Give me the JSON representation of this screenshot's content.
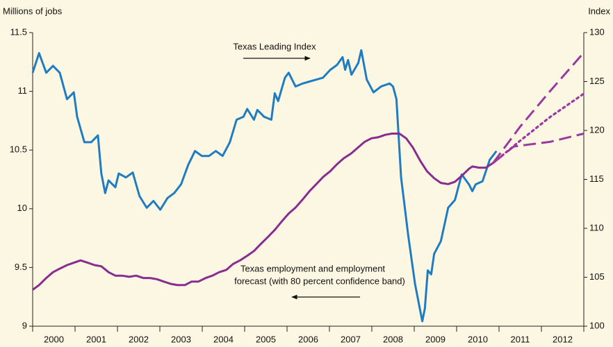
{
  "chart_data": {
    "type": "line",
    "y_label": "Millions of jobs",
    "y2_label": "Index",
    "annotations": [
      {
        "lines": [
          "Texas Leading Index"
        ],
        "arrow": "right"
      },
      {
        "lines": [
          "Texas employment and employment",
          "forecast (with 80 percent confidence band)"
        ],
        "arrow": "left"
      }
    ],
    "xlim": [
      2000,
      2013
    ],
    "xticks": [
      {
        "value": 2000.5,
        "label": "2000"
      },
      {
        "value": 2001.5,
        "label": "2001"
      },
      {
        "value": 2002.5,
        "label": "2002"
      },
      {
        "value": 2003.5,
        "label": "2003"
      },
      {
        "value": 2004.5,
        "label": "2004"
      },
      {
        "value": 2005.5,
        "label": "2005"
      },
      {
        "value": 2006.5,
        "label": "2006"
      },
      {
        "value": 2007.5,
        "label": "2007"
      },
      {
        "value": 2008.5,
        "label": "2008"
      },
      {
        "value": 2009.5,
        "label": "2009"
      },
      {
        "value": 2010.5,
        "label": "2010"
      },
      {
        "value": 2011.5,
        "label": "2011"
      },
      {
        "value": 2012.5,
        "label": "2012"
      }
    ],
    "ylim": [
      9,
      11.5
    ],
    "yticks": [
      9,
      9.5,
      10,
      10.5,
      11,
      11.5
    ],
    "y2lim": [
      100,
      130
    ],
    "y2ticks": [
      100,
      105,
      110,
      115,
      120,
      125,
      130
    ],
    "series": [
      {
        "color": "#1f7cc1",
        "axis": "y2",
        "dash": "solid",
        "x": [
          2000.0,
          2000.15,
          2000.32,
          2000.48,
          2000.64,
          2000.81,
          2000.97,
          2001.05,
          2001.22,
          2001.38,
          2001.54,
          2001.62,
          2001.71,
          2001.79,
          2001.95,
          2002.03,
          2002.2,
          2002.36,
          2002.52,
          2002.69,
          2002.85,
          2003.01,
          2003.18,
          2003.34,
          2003.5,
          2003.67,
          2003.83,
          2003.99,
          2004.16,
          2004.32,
          2004.48,
          2004.65,
          2004.81,
          2004.97,
          2005.06,
          2005.22,
          2005.3,
          2005.46,
          2005.63,
          2005.71,
          2005.79,
          2005.95,
          2006.04,
          2006.2,
          2006.37,
          2006.53,
          2006.69,
          2006.85,
          2007.02,
          2007.18,
          2007.31,
          2007.37,
          2007.44,
          2007.52,
          2007.68,
          2007.75,
          2007.88,
          2008.04,
          2008.22,
          2008.42,
          2008.5,
          2008.58,
          2008.69,
          2008.86,
          2009.02,
          2009.19,
          2009.25,
          2009.32,
          2009.4,
          2009.47,
          2009.63,
          2009.8,
          2009.96,
          2010.12,
          2010.29,
          2010.37,
          2010.45,
          2010.61,
          2010.78,
          2010.94
        ],
        "values": [
          125.9,
          127.9,
          125.9,
          126.6,
          125.9,
          123.2,
          123.9,
          121.4,
          118.8,
          118.8,
          119.5,
          115.6,
          113.6,
          114.9,
          114.2,
          115.6,
          115.2,
          115.7,
          113.3,
          112.1,
          112.8,
          111.9,
          113.1,
          113.6,
          114.5,
          116.5,
          117.9,
          117.4,
          117.4,
          117.9,
          117.4,
          118.8,
          121.1,
          121.4,
          122.2,
          121.1,
          122.1,
          121.4,
          121.1,
          123.8,
          123.0,
          125.4,
          125.9,
          124.5,
          124.8,
          125.0,
          125.2,
          125.4,
          126.2,
          126.7,
          127.5,
          126.2,
          127.2,
          125.7,
          126.9,
          128.2,
          125.2,
          123.9,
          124.5,
          124.8,
          124.5,
          123.2,
          115.2,
          109.2,
          104.3,
          100.5,
          101.8,
          105.7,
          105.3,
          107.4,
          108.7,
          112.1,
          112.9,
          115.5,
          114.5,
          113.8,
          114.5,
          114.8,
          117.0,
          117.9
        ]
      },
      {
        "color": "#8a2b90",
        "dash": "solid",
        "x": [
          2000.0,
          2000.15,
          2000.32,
          2000.48,
          2000.64,
          2000.81,
          2000.97,
          2001.13,
          2001.3,
          2001.46,
          2001.62,
          2001.79,
          2001.95,
          2002.11,
          2002.28,
          2002.44,
          2002.61,
          2002.77,
          2002.93,
          2003.09,
          2003.26,
          2003.42,
          2003.59,
          2003.75,
          2003.91,
          2004.08,
          2004.24,
          2004.4,
          2004.57,
          2004.73,
          2004.89,
          2005.06,
          2005.22,
          2005.38,
          2005.55,
          2005.71,
          2005.87,
          2006.04,
          2006.2,
          2006.37,
          2006.53,
          2006.69,
          2006.85,
          2007.02,
          2007.18,
          2007.34,
          2007.51,
          2007.67,
          2007.83,
          2007.99,
          2008.16,
          2008.32,
          2008.48,
          2008.65,
          2008.81,
          2008.97,
          2009.14,
          2009.3,
          2009.47,
          2009.63,
          2009.8,
          2009.96,
          2010.12,
          2010.29,
          2010.37,
          2010.53,
          2010.69,
          2010.86
        ],
        "values": [
          9.31,
          9.35,
          9.41,
          9.46,
          9.49,
          9.52,
          9.54,
          9.56,
          9.54,
          9.52,
          9.51,
          9.46,
          9.43,
          9.43,
          9.42,
          9.43,
          9.41,
          9.41,
          9.4,
          9.38,
          9.36,
          9.35,
          9.35,
          9.38,
          9.38,
          9.41,
          9.43,
          9.46,
          9.48,
          9.53,
          9.56,
          9.6,
          9.64,
          9.7,
          9.76,
          9.82,
          9.89,
          9.96,
          10.01,
          10.08,
          10.15,
          10.21,
          10.27,
          10.32,
          10.38,
          10.43,
          10.47,
          10.52,
          10.57,
          10.6,
          10.61,
          10.63,
          10.64,
          10.64,
          10.6,
          10.52,
          10.41,
          10.32,
          10.26,
          10.22,
          10.21,
          10.23,
          10.28,
          10.34,
          10.36,
          10.35,
          10.35,
          10.39
        ]
      },
      {
        "color": "#9a3a9e",
        "dash": "dashed",
        "x": [
          2010.86,
          2011.5,
          2012.2,
          2013.0
        ],
        "values": [
          10.39,
          10.7,
          11.0,
          11.33
        ]
      },
      {
        "color": "#9a3a9e",
        "dash": "dotted",
        "x": [
          2010.86,
          2011.5,
          2012.2,
          2013.0
        ],
        "values": [
          10.39,
          10.58,
          10.78,
          10.98
        ]
      },
      {
        "color": "#9a3a9e",
        "dash": "dashed",
        "x": [
          2010.86,
          2011.35,
          2012.2,
          2013.0
        ],
        "values": [
          10.39,
          10.53,
          10.57,
          10.64
        ]
      }
    ]
  }
}
